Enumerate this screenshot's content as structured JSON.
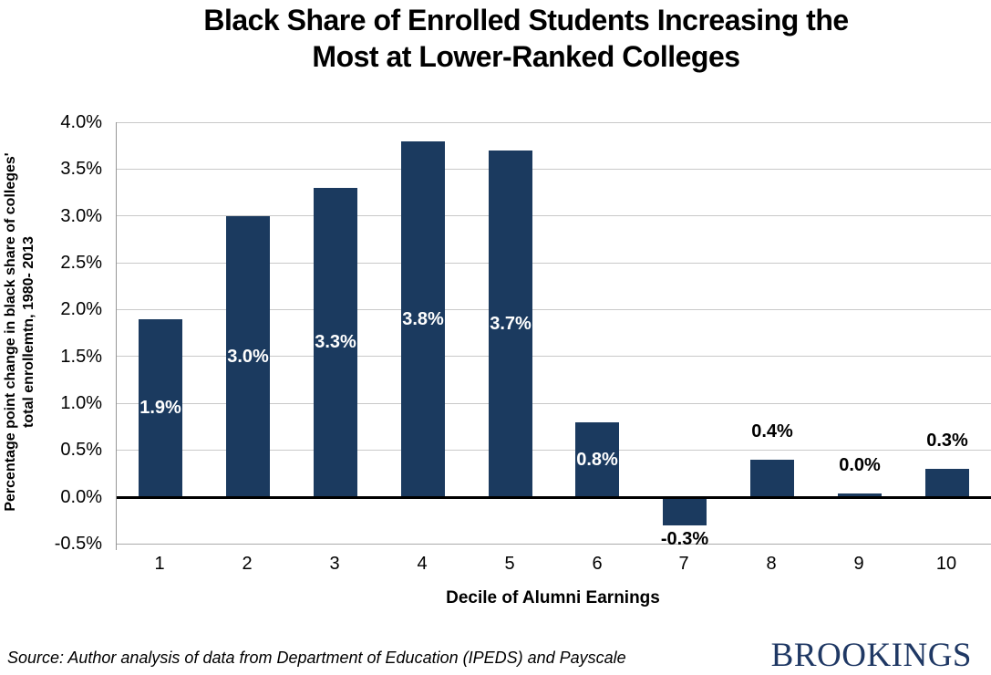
{
  "title": {
    "line1": "Black Share of Enrolled Students Increasing the",
    "line2": "Most at Lower-Ranked Colleges"
  },
  "source": "Source: Author analysis of data from Department of Education (IPEDS) and Payscale",
  "logo": "BROOKINGS",
  "colors": {
    "bar": "#1B3A5F",
    "label_inside": "#FFFFFF",
    "label_outside": "#000000",
    "gridline": "#C9C9C9",
    "axis_line": "#969696",
    "zero_line": "#000000",
    "logo_navy": "#1F3864"
  },
  "chart_data": {
    "type": "bar",
    "title": "Black Share of Enrolled Students Increasing the Most at Lower-Ranked Colleges",
    "categories": [
      "1",
      "2",
      "3",
      "4",
      "5",
      "6",
      "7",
      "8",
      "9",
      "10"
    ],
    "values": [
      1.9,
      3.0,
      3.3,
      3.8,
      3.7,
      0.8,
      -0.3,
      0.4,
      0.0,
      0.3
    ],
    "data_labels": [
      "1.9%",
      "3.0%",
      "3.3%",
      "3.8%",
      "3.7%",
      "0.8%",
      "-0.3%",
      "0.4%",
      "0.0%",
      "0.3%"
    ],
    "label_positions": [
      "inside",
      "inside",
      "inside",
      "inside",
      "inside",
      "inside",
      "below",
      "above",
      "above",
      "above"
    ],
    "xlabel": "Decile of Alumni Earnings",
    "ylabel_line1": "Percentage point change in black share of colleges'",
    "ylabel_line2": "total enrollemtn, 1980- 2013",
    "ylim": [
      -0.5,
      4.0
    ],
    "ytick_step": 0.5,
    "yticks": [
      "4.0%",
      "3.5%",
      "3.0%",
      "2.5%",
      "2.0%",
      "1.5%",
      "1.0%",
      "0.5%",
      "0.0%",
      "-0.5%"
    ],
    "grid": true,
    "legend_position": "none"
  }
}
